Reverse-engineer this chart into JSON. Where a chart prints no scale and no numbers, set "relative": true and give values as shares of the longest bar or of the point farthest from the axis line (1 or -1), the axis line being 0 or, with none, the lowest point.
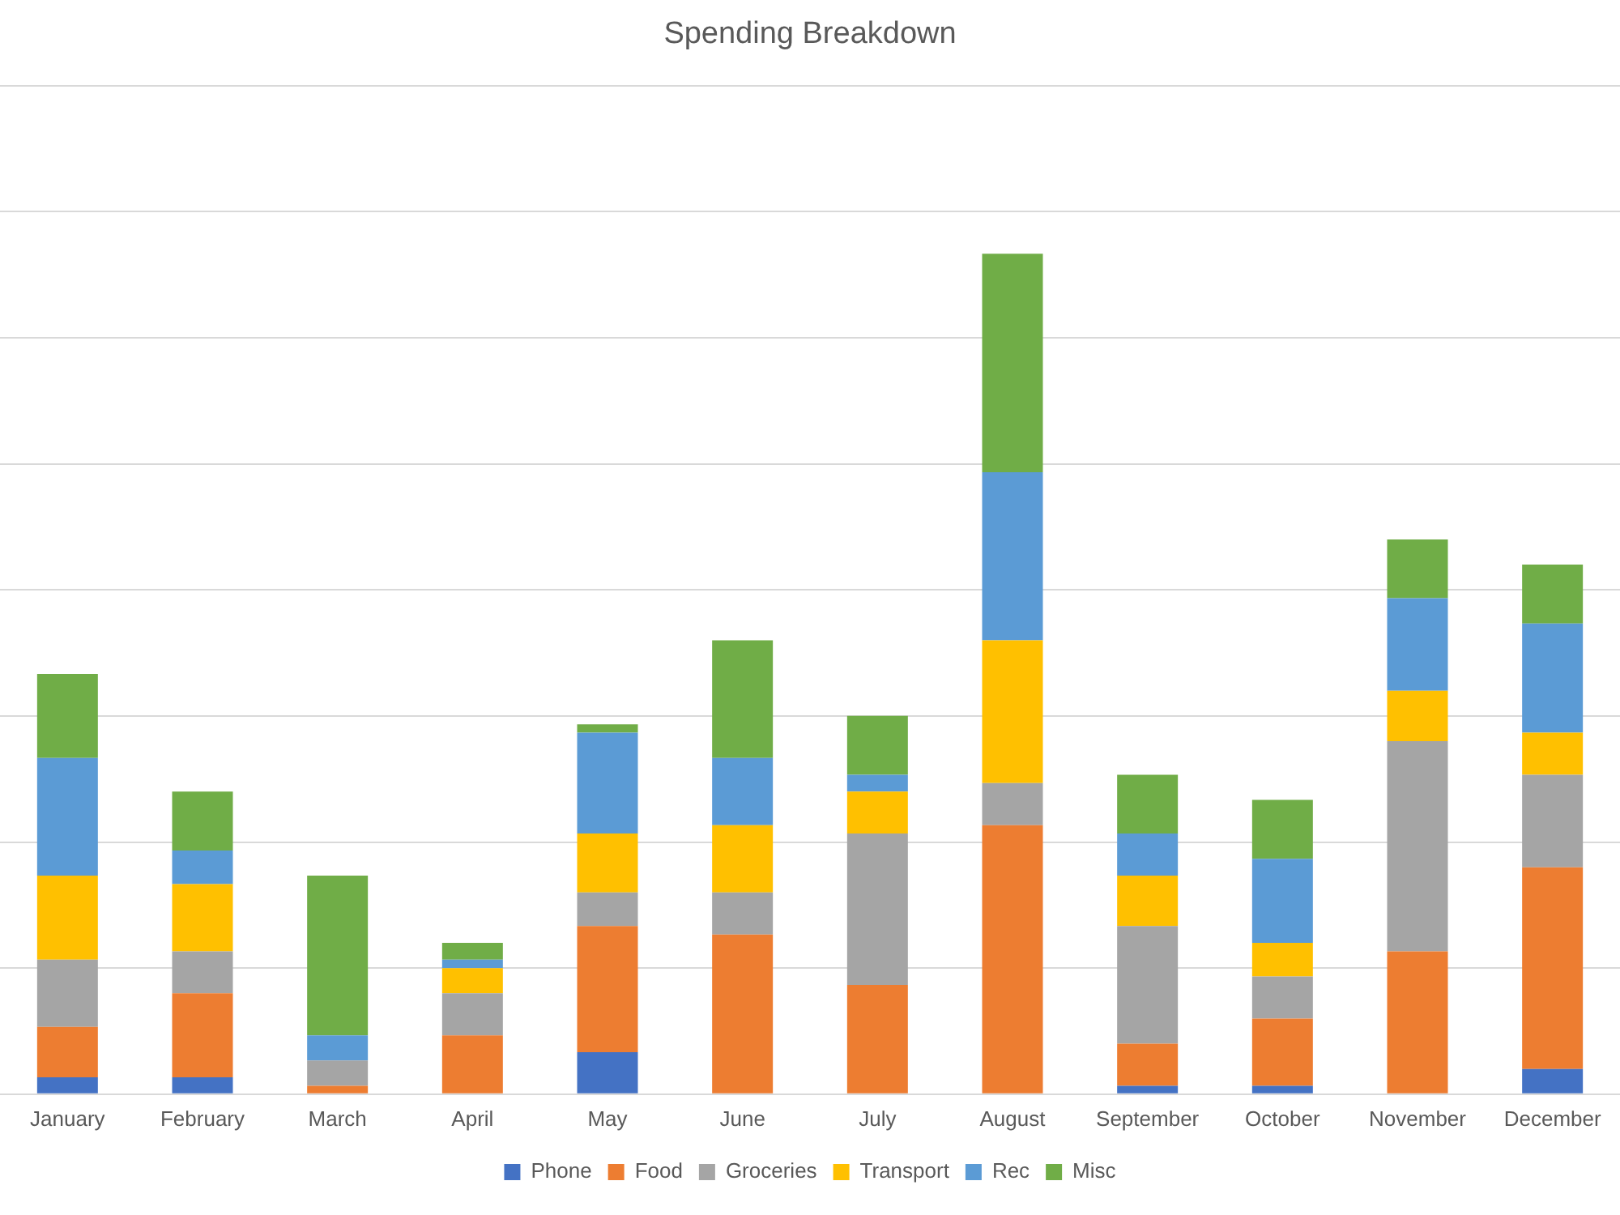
{
  "chart_data": {
    "type": "bar",
    "title": "Spending Breakdown",
    "stacked": true,
    "relative": true,
    "grid": "y",
    "legend": "bottom",
    "categories": [
      "January",
      "February",
      "March",
      "April",
      "May",
      "June",
      "July",
      "August",
      "September",
      "October",
      "November",
      "December"
    ],
    "series": [
      {
        "name": "Phone",
        "color": "#4472c4",
        "values": [
          0.02,
          0.02,
          0,
          0,
          0.05,
          0,
          0,
          0,
          0.01,
          0.01,
          0,
          0.03
        ]
      },
      {
        "name": "Food",
        "color": "#ed7d31",
        "values": [
          0.06,
          0.1,
          0.01,
          0.07,
          0.15,
          0.19,
          0.13,
          0.32,
          0.05,
          0.08,
          0.17,
          0.24
        ]
      },
      {
        "name": "Groceries",
        "color": "#a5a5a5",
        "values": [
          0.08,
          0.05,
          0.03,
          0.05,
          0.04,
          0.05,
          0.18,
          0.05,
          0.14,
          0.05,
          0.25,
          0.11
        ]
      },
      {
        "name": "Transport",
        "color": "#ffc000",
        "values": [
          0.1,
          0.08,
          0,
          0.03,
          0.07,
          0.08,
          0.05,
          0.17,
          0.06,
          0.04,
          0.06,
          0.05
        ]
      },
      {
        "name": "Rec",
        "color": "#5b9bd5",
        "values": [
          0.14,
          0.04,
          0.03,
          0.01,
          0.12,
          0.08,
          0.02,
          0.2,
          0.05,
          0.1,
          0.11,
          0.13
        ]
      },
      {
        "name": "Misc",
        "color": "#70ad47",
        "values": [
          0.1,
          0.07,
          0.19,
          0.02,
          0.01,
          0.14,
          0.07,
          0.26,
          0.07,
          0.07,
          0.07,
          0.07
        ]
      }
    ]
  }
}
